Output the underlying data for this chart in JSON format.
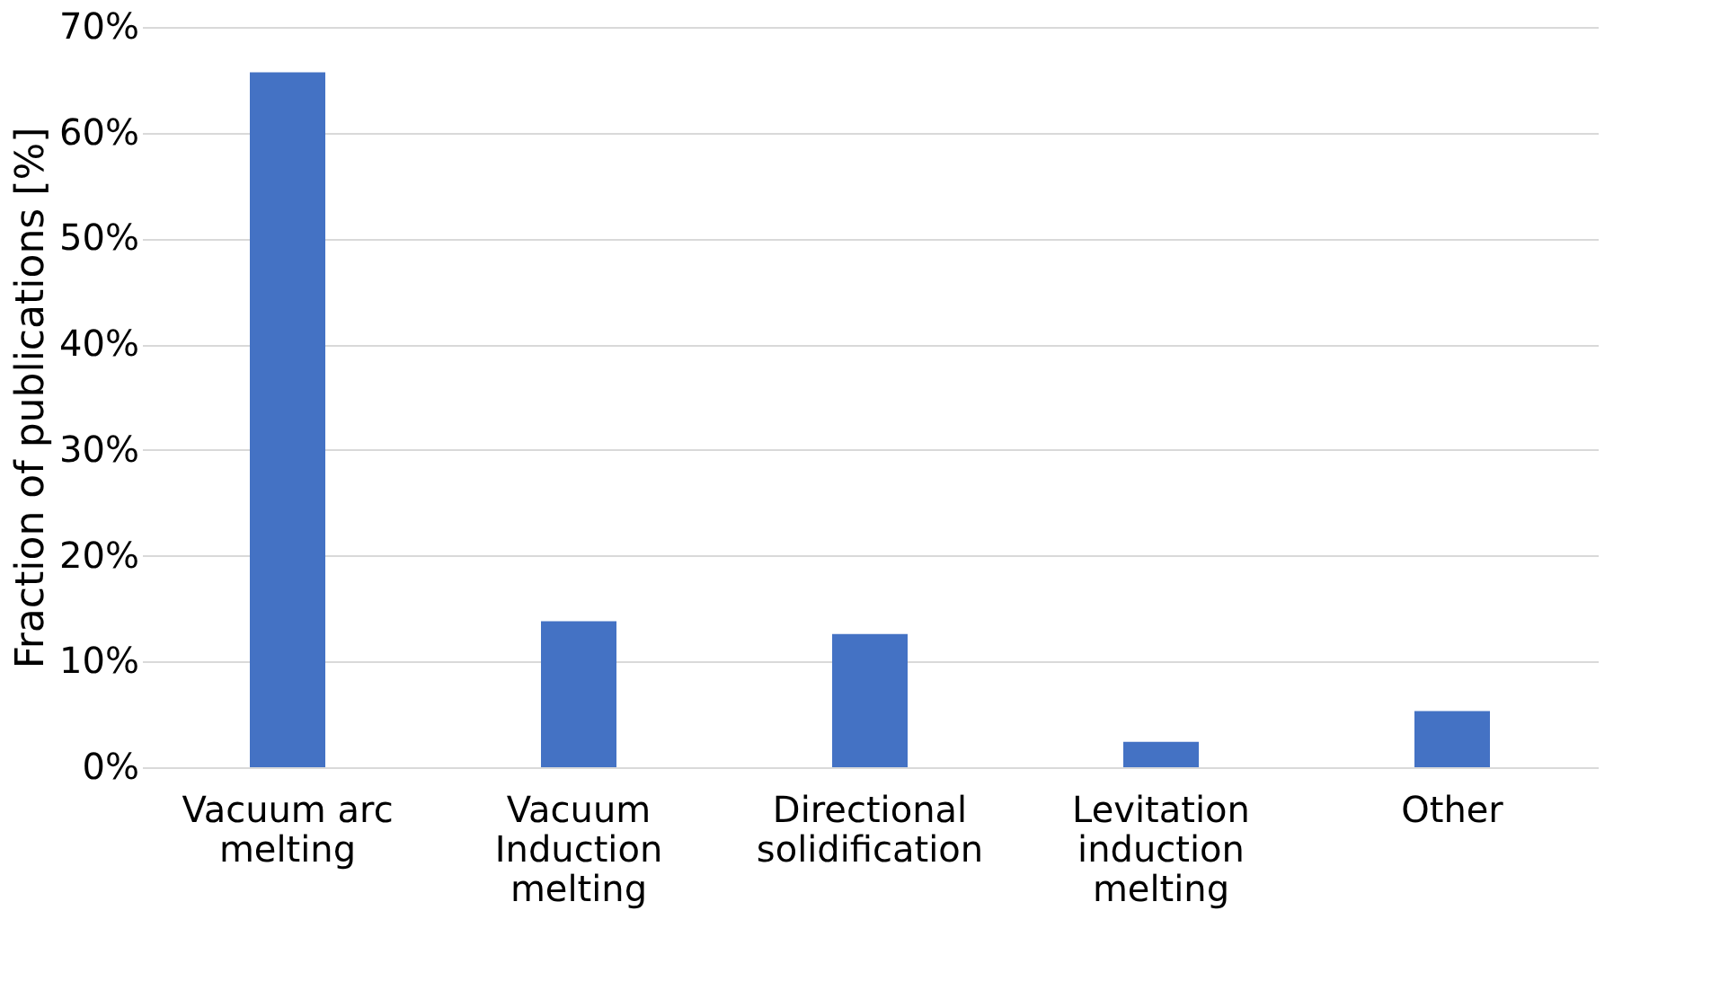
{
  "chart_data": {
    "type": "bar",
    "ylabel": "Fraction of publications [%]",
    "categories": [
      "Vacuum arc melting",
      "Vacuum Induction melting",
      "Directional solidification",
      "Levitation induction melting",
      "Other"
    ],
    "values": [
      65.7,
      13.8,
      12.6,
      2.4,
      5.3
    ],
    "color": "#4472c4",
    "ylim": [
      0,
      70
    ],
    "yticks": [
      {
        "value": 0,
        "label": "0%"
      },
      {
        "value": 10,
        "label": "10%"
      },
      {
        "value": 20,
        "label": "20%"
      },
      {
        "value": 30,
        "label": "30%"
      },
      {
        "value": 40,
        "label": "40%"
      },
      {
        "value": 50,
        "label": "50%"
      },
      {
        "value": 60,
        "label": "60%"
      },
      {
        "value": 70,
        "label": "70%"
      }
    ],
    "grid": "y"
  }
}
